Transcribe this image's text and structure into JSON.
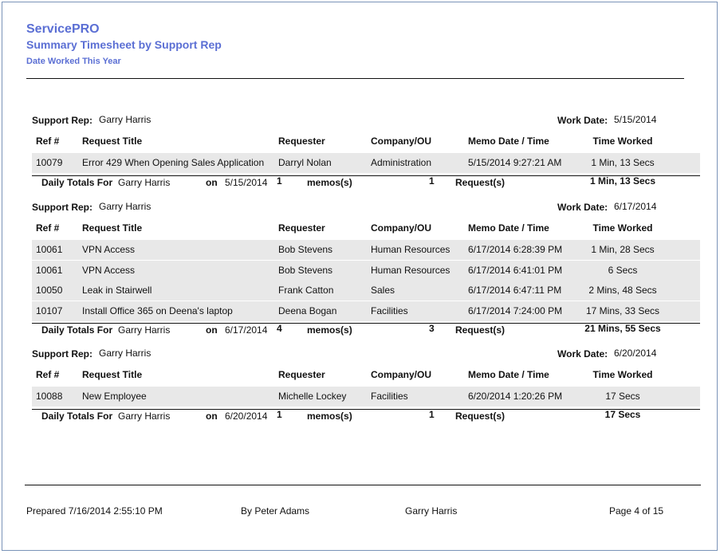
{
  "report": {
    "app_title": "ServicePRO",
    "report_title": "Summary Timesheet by Support Rep",
    "subtitle": "Date Worked This Year"
  },
  "labels": {
    "support_rep": "Support Rep:",
    "work_date": "Work Date:",
    "daily_totals_for": "Daily Totals For",
    "on": "on",
    "memos": "memos(s)",
    "requests": "Request(s)"
  },
  "columns": [
    "Ref #",
    "Request Title",
    "Requester",
    "Company/OU",
    "Memo Date / Time",
    "Time Worked"
  ],
  "groups": [
    {
      "rep": "Garry Harris",
      "work_date": "5/15/2014",
      "rows": [
        [
          "10079",
          "Error 429 When Opening Sales Application",
          "Darryl Nolan",
          "Administration",
          "5/15/2014 9:27:21 AM",
          "1 Min, 13 Secs"
        ]
      ],
      "totals": {
        "rep": "Garry Harris",
        "date": "5/15/2014",
        "memos": "1",
        "requests": "1",
        "time": "1 Min, 13 Secs"
      }
    },
    {
      "rep": "Garry Harris",
      "work_date": "6/17/2014",
      "rows": [
        [
          "10061",
          "VPN Access",
          "Bob Stevens",
          "Human Resources",
          "6/17/2014 6:28:39 PM",
          "1 Min, 28 Secs"
        ],
        [
          "10061",
          "VPN Access",
          "Bob Stevens",
          "Human Resources",
          "6/17/2014 6:41:01 PM",
          "6 Secs"
        ],
        [
          "10050",
          "Leak in Stairwell",
          "Frank Catton",
          "Sales",
          "6/17/2014 6:47:11 PM",
          "2 Mins, 48 Secs"
        ],
        [
          "10107",
          "Install Office 365 on Deena's  laptop",
          "Deena Bogan",
          "Facilities",
          "6/17/2014 7:24:00 PM",
          "17 Mins, 33 Secs"
        ]
      ],
      "totals": {
        "rep": "Garry Harris",
        "date": "6/17/2014",
        "memos": "4",
        "requests": "3",
        "time": "21 Mins, 55 Secs"
      }
    },
    {
      "rep": "Garry Harris",
      "work_date": "6/20/2014",
      "rows": [
        [
          "10088",
          "New Employee",
          "Michelle Lockey",
          "Facilities",
          "6/20/2014 1:20:26 PM",
          "17 Secs"
        ]
      ],
      "totals": {
        "rep": "Garry Harris",
        "date": "6/20/2014",
        "memos": "1",
        "requests": "1",
        "time": "17 Secs"
      }
    }
  ],
  "footer": {
    "prepared": "Prepared 7/16/2014 2:55:10 PM",
    "by": "By Peter Adams",
    "rep": "Garry Harris",
    "page": "Page 4 of 15"
  },
  "colors": {
    "header": "#5b6fd4",
    "row_shade": "#e8e8e8",
    "frame": "#7a93b8"
  }
}
